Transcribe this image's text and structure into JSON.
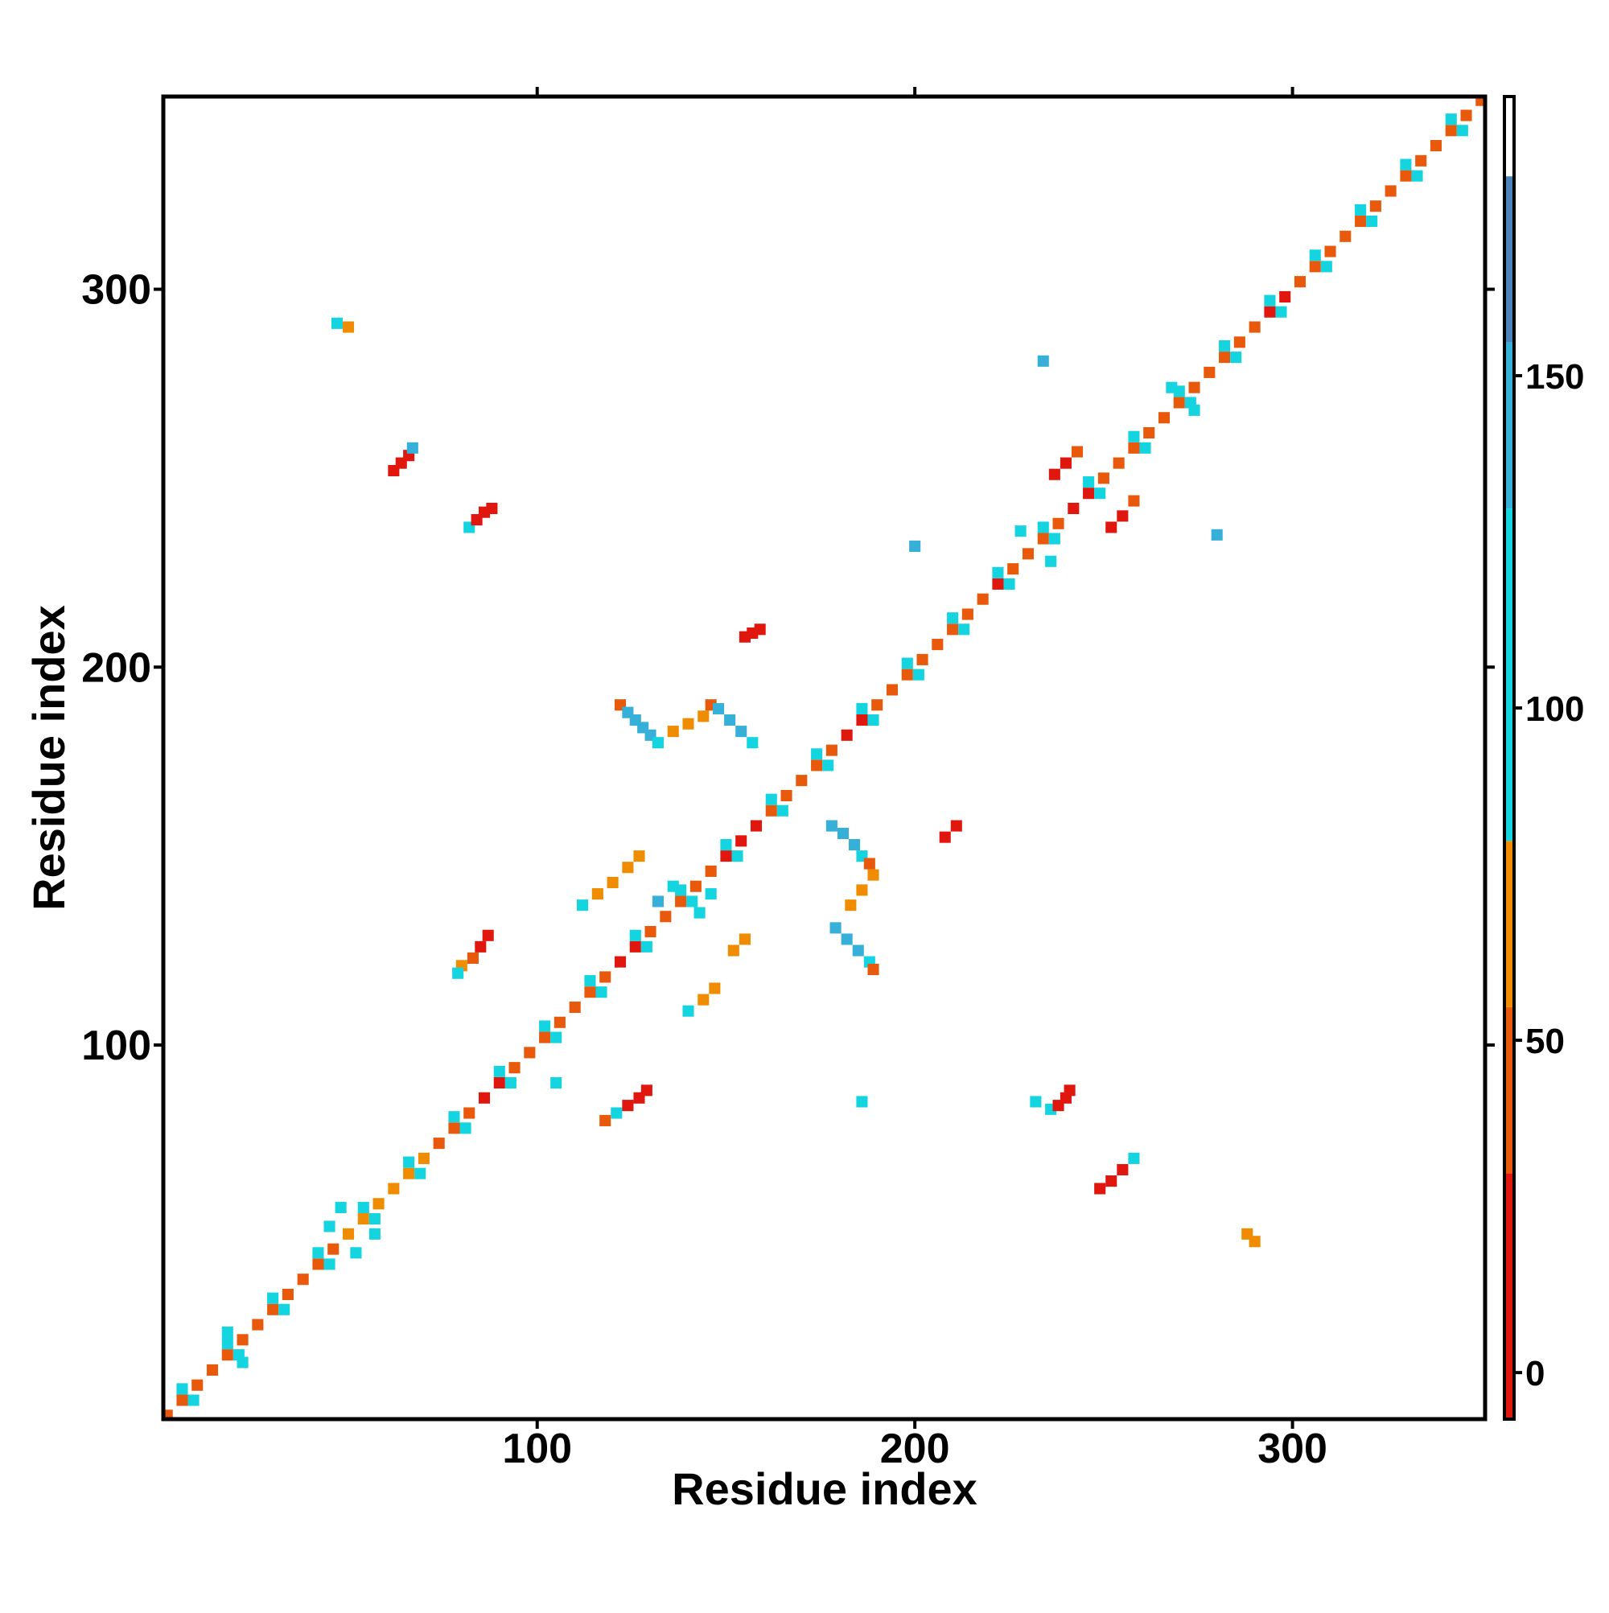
{
  "chart_data": {
    "type": "heatmap",
    "x_label": "Residue index",
    "y_label": "Residue index",
    "xlim": [
      1,
      351
    ],
    "ylim": [
      1,
      351
    ],
    "xticks": [
      100,
      200,
      300
    ],
    "yticks": [
      100,
      200,
      300
    ],
    "colorbar": {
      "bounds": [
        -7,
        30,
        55,
        80,
        130,
        155,
        180,
        192
      ],
      "colors": [
        "#e0170f",
        "#e8590c",
        "#f08c00",
        "#14d4e0",
        "#36b0d8",
        "#4a84b8",
        "#ffffff"
      ],
      "lim": [
        -7,
        192
      ],
      "ticks": [
        0,
        50,
        100,
        150
      ]
    },
    "cell_groups": [
      {
        "x": [
          2,
          6,
          10,
          14,
          18,
          22,
          26,
          30,
          34,
          38,
          42,
          46,
          50,
          54,
          58,
          62,
          66,
          70,
          74,
          78,
          82,
          86,
          90,
          94,
          98,
          102,
          106,
          110,
          114,
          118,
          122,
          126,
          130,
          134,
          138,
          142,
          146,
          150,
          154,
          158,
          162,
          166,
          170,
          174,
          178,
          182,
          186,
          190,
          194,
          198,
          202,
          206,
          210,
          214,
          218,
          222,
          226,
          230,
          234,
          238,
          242,
          246,
          250,
          254,
          258,
          262,
          266,
          270,
          274,
          278,
          282,
          286,
          290,
          294,
          298,
          302,
          306,
          310,
          314,
          318,
          322,
          326,
          330,
          334,
          338,
          342,
          346,
          350
        ],
        "y": [
          2,
          6,
          10,
          14,
          18,
          22,
          26,
          30,
          34,
          38,
          42,
          46,
          50,
          54,
          58,
          62,
          66,
          70,
          74,
          78,
          82,
          86,
          90,
          94,
          98,
          102,
          106,
          110,
          114,
          118,
          122,
          126,
          130,
          134,
          138,
          142,
          146,
          150,
          154,
          158,
          162,
          166,
          170,
          174,
          178,
          182,
          186,
          190,
          194,
          198,
          202,
          206,
          210,
          214,
          218,
          222,
          226,
          230,
          234,
          238,
          242,
          246,
          250,
          254,
          258,
          262,
          266,
          270,
          274,
          278,
          282,
          286,
          290,
          294,
          298,
          302,
          306,
          310,
          314,
          318,
          322,
          326,
          330,
          334,
          338,
          342,
          346,
          350
        ],
        "values": [
          50,
          50,
          50,
          50,
          50,
          50,
          50,
          50,
          50,
          50,
          50,
          50,
          60,
          60,
          60,
          60,
          60,
          60,
          50,
          50,
          50,
          10,
          10,
          50,
          50,
          50,
          50,
          50,
          50,
          50,
          5,
          5,
          50,
          50,
          50,
          50,
          50,
          10,
          10,
          10,
          50,
          50,
          50,
          50,
          50,
          5,
          5,
          50,
          50,
          50,
          50,
          50,
          50,
          50,
          50,
          5,
          50,
          50,
          50,
          50,
          10,
          10,
          50,
          50,
          50,
          50,
          50,
          50,
          50,
          50,
          50,
          50,
          50,
          20,
          20,
          50,
          50,
          50,
          50,
          50,
          50,
          50,
          50,
          50,
          50,
          50,
          50,
          50
        ]
      },
      {
        "x": [
          9,
          21,
          33,
          45,
          57,
          69,
          81,
          93,
          105,
          117,
          129,
          141,
          153,
          165,
          177,
          189,
          201,
          213,
          225,
          237,
          249,
          261,
          273,
          285,
          297,
          309,
          321,
          333,
          345
        ],
        "y": [
          6,
          18,
          30,
          42,
          54,
          66,
          78,
          90,
          102,
          114,
          126,
          138,
          150,
          162,
          174,
          186,
          198,
          210,
          222,
          234,
          246,
          258,
          270,
          282,
          294,
          306,
          318,
          330,
          342
        ],
        "values": [
          90,
          90,
          90,
          90,
          90,
          90,
          90,
          90,
          90,
          90,
          90,
          90,
          90,
          90,
          90,
          90,
          90,
          90,
          90,
          90,
          90,
          90,
          90,
          90,
          90,
          90,
          90,
          90,
          90
        ]
      },
      {
        "x": [
          6,
          18,
          30,
          42,
          54,
          66,
          78,
          90,
          102,
          114,
          126,
          138,
          150,
          162,
          174,
          186,
          198,
          210,
          222,
          234,
          246,
          258,
          270,
          282,
          294,
          306,
          318,
          330,
          342
        ],
        "y": [
          9,
          21,
          33,
          45,
          57,
          69,
          81,
          93,
          105,
          117,
          129,
          141,
          153,
          165,
          177,
          189,
          201,
          213,
          225,
          237,
          249,
          261,
          273,
          285,
          297,
          309,
          321,
          333,
          345
        ],
        "values": [
          90,
          90,
          90,
          90,
          90,
          90,
          90,
          90,
          90,
          90,
          90,
          90,
          90,
          90,
          90,
          90,
          90,
          90,
          90,
          90,
          90,
          90,
          90,
          90,
          90,
          90,
          90,
          90,
          90
        ]
      },
      {
        "x": [
          62,
          64,
          66,
          67,
          82,
          84,
          86,
          88,
          155,
          157,
          159,
          122,
          124,
          126,
          128,
          130,
          132,
          136,
          140,
          144,
          146,
          148,
          151,
          154,
          157,
          178,
          181,
          184,
          186,
          188,
          189,
          186,
          183,
          179,
          182,
          185,
          188,
          189,
          208,
          211,
          80,
          83,
          85,
          87,
          79,
          112,
          116,
          120,
          124,
          127,
          140,
          144,
          147,
          152,
          155,
          118,
          121,
          124,
          127,
          129,
          232,
          236,
          238,
          240,
          241,
          249,
          252,
          255,
          258,
          237,
          240,
          243,
          252,
          255,
          258,
          47,
          50,
          234,
          280,
          288,
          290,
          136,
          143,
          132,
          146,
          45,
          52,
          57,
          48,
          228,
          236,
          268,
          274,
          18,
          22,
          200,
          105,
          186
        ],
        "y": [
          252,
          254,
          256,
          258,
          237,
          239,
          241,
          242,
          208,
          209,
          210,
          190,
          188,
          186,
          184,
          182,
          180,
          183,
          185,
          187,
          190,
          189,
          186,
          183,
          180,
          158,
          156,
          153,
          150,
          148,
          145,
          141,
          137,
          131,
          128,
          125,
          122,
          120,
          155,
          158,
          121,
          123,
          126,
          129,
          119,
          137,
          140,
          143,
          147,
          150,
          109,
          112,
          115,
          125,
          128,
          80,
          82,
          84,
          86,
          88,
          85,
          83,
          84,
          86,
          88,
          62,
          64,
          67,
          70,
          251,
          254,
          257,
          237,
          240,
          244,
          291,
          290,
          281,
          235,
          50,
          48,
          142,
          135,
          138,
          140,
          52,
          45,
          50,
          57,
          236,
          228,
          274,
          268,
          24,
          16,
          232,
          90,
          85
        ],
        "values": [
          5,
          5,
          10,
          140,
          90,
          5,
          5,
          10,
          10,
          5,
          20,
          50,
          150,
          150,
          150,
          150,
          90,
          55,
          60,
          55,
          50,
          140,
          140,
          140,
          90,
          150,
          150,
          150,
          90,
          50,
          55,
          60,
          55,
          150,
          150,
          150,
          90,
          30,
          10,
          5,
          55,
          30,
          5,
          10,
          90,
          90,
          60,
          55,
          55,
          60,
          90,
          55,
          60,
          55,
          60,
          50,
          90,
          5,
          10,
          5,
          90,
          90,
          5,
          10,
          5,
          5,
          5,
          10,
          90,
          5,
          10,
          50,
          5,
          10,
          30,
          90,
          55,
          140,
          140,
          55,
          55,
          90,
          90,
          140,
          90,
          90,
          90,
          90,
          90,
          90,
          90,
          90,
          90,
          90,
          90,
          140,
          90,
          90
        ]
      }
    ]
  }
}
